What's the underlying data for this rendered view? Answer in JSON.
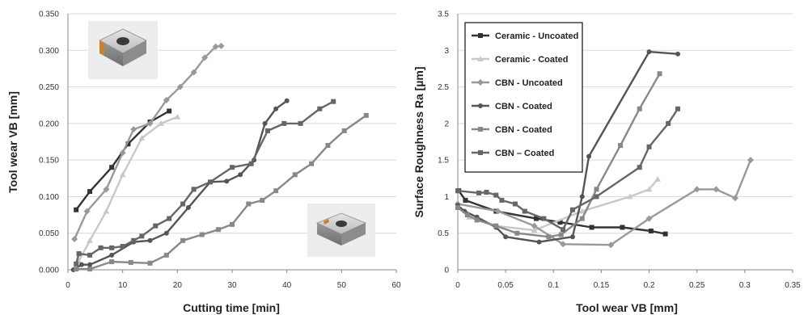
{
  "chart_data": [
    {
      "type": "line",
      "title": "",
      "xlabel": "Cutting time [min]",
      "ylabel": "Tool wear VB [mm]",
      "xlim": [
        0,
        60
      ],
      "ylim": [
        0,
        0.35
      ],
      "xticks": [
        "0",
        "10",
        "20",
        "30",
        "40",
        "50",
        "60"
      ],
      "yticks": [
        "0.000",
        "0.050",
        "0.100",
        "0.150",
        "0.200",
        "0.250",
        "0.300",
        "0.350"
      ],
      "grid": "horizontal",
      "legend": "none",
      "insets": [
        "insert-photo-top-left",
        "insert-photo-bottom-right"
      ],
      "series": [
        {
          "color": "#333333",
          "marker": "square",
          "x": [
            1.5,
            4,
            8,
            11,
            15,
            18.5
          ],
          "y": [
            0.082,
            0.107,
            0.14,
            0.172,
            0.202,
            0.217
          ]
        },
        {
          "color": "#c8c8c8",
          "marker": "triangle",
          "x": [
            2,
            4,
            7,
            10,
            13.5,
            17,
            20
          ],
          "y": [
            0.012,
            0.04,
            0.08,
            0.13,
            0.18,
            0.2,
            0.209
          ]
        },
        {
          "color": "#999999",
          "marker": "diamond",
          "x": [
            1.2,
            3.5,
            7,
            10,
            12,
            15,
            18,
            20.5,
            23,
            25,
            27,
            28
          ],
          "y": [
            0.042,
            0.08,
            0.11,
            0.16,
            0.192,
            0.2,
            0.232,
            0.25,
            0.27,
            0.29,
            0.305,
            0.306
          ]
        },
        {
          "color": "#555555",
          "marker": "circle",
          "x": [
            1,
            2.5,
            4,
            8,
            12,
            15,
            18,
            22,
            26,
            29,
            31.5,
            34,
            36,
            38,
            40
          ],
          "y": [
            0,
            0.007,
            0.007,
            0.02,
            0.038,
            0.04,
            0.05,
            0.085,
            0.12,
            0.121,
            0.13,
            0.15,
            0.2,
            0.22,
            0.231
          ]
        },
        {
          "color": "#888888",
          "marker": "square",
          "x": [
            1.5,
            4,
            8,
            11.5,
            15,
            18,
            21,
            24.5,
            27.5,
            30,
            33,
            35.5,
            38,
            41.5,
            44.5,
            47.5,
            50.5,
            54.5
          ],
          "y": [
            0.001,
            0.001,
            0.011,
            0.01,
            0.009,
            0.02,
            0.04,
            0.048,
            0.055,
            0.062,
            0.09,
            0.095,
            0.108,
            0.13,
            0.145,
            0.17,
            0.19,
            0.211
          ]
        },
        {
          "color": "#666666",
          "marker": "square",
          "x": [
            1.5,
            2,
            4,
            6,
            8,
            10,
            12,
            13.5,
            16,
            18.5,
            21,
            23,
            26,
            30,
            33.5,
            36.5,
            39.5,
            42.5,
            46,
            48.5
          ],
          "y": [
            0.008,
            0.022,
            0.02,
            0.03,
            0.03,
            0.032,
            0.04,
            0.046,
            0.06,
            0.07,
            0.09,
            0.11,
            0.12,
            0.14,
            0.145,
            0.19,
            0.2,
            0.2,
            0.22,
            0.23
          ]
        }
      ]
    },
    {
      "type": "line",
      "title": "",
      "xlabel": "Tool wear VB [mm]",
      "ylabel": "Surface Roughness Ra [µm]",
      "xlim": [
        0,
        0.35
      ],
      "ylim": [
        0,
        3.5
      ],
      "xticks": [
        "0",
        "0.05",
        "0.1",
        "0.15",
        "0.2",
        "0.25",
        "0.3",
        "0.35"
      ],
      "yticks": [
        "0",
        "0.5",
        "1",
        "1.5",
        "2",
        "2.5",
        "3",
        "3.5"
      ],
      "grid": "horizontal",
      "legend": "top-left",
      "series": [
        {
          "name": "Ceramic - Uncoated",
          "color": "#333333",
          "marker": "square",
          "x": [
            0.001,
            0.008,
            0.04,
            0.082,
            0.107,
            0.14,
            0.172,
            0.202,
            0.217
          ],
          "y": [
            1.08,
            0.95,
            0.8,
            0.7,
            0.65,
            0.58,
            0.58,
            0.53,
            0.49
          ]
        },
        {
          "name": "Ceramic - Coated",
          "color": "#c8c8c8",
          "marker": "triangle",
          "x": [
            0,
            0.012,
            0.04,
            0.08,
            0.13,
            0.18,
            0.2,
            0.209
          ],
          "y": [
            0.88,
            0.72,
            0.6,
            0.54,
            0.8,
            1.0,
            1.1,
            1.24
          ]
        },
        {
          "name": "CBN - Uncoated",
          "color": "#999999",
          "marker": "diamond",
          "x": [
            0,
            0.042,
            0.08,
            0.11,
            0.16,
            0.2,
            0.25,
            0.27,
            0.29,
            0.306
          ],
          "y": [
            0.9,
            0.8,
            0.6,
            0.35,
            0.34,
            0.7,
            1.1,
            1.1,
            0.98,
            1.5
          ]
        },
        {
          "name": "CBN - Coated",
          "color": "#555555",
          "marker": "circle",
          "x": [
            0,
            0.007,
            0.02,
            0.04,
            0.05,
            0.085,
            0.12,
            0.13,
            0.137,
            0.2,
            0.23
          ],
          "y": [
            0.88,
            0.8,
            0.72,
            0.58,
            0.45,
            0.38,
            0.45,
            1.0,
            1.55,
            2.98,
            2.95
          ]
        },
        {
          "name": "CBN - Coated",
          "color": "#888888",
          "marker": "square",
          "x": [
            0,
            0.01,
            0.02,
            0.04,
            0.062,
            0.095,
            0.108,
            0.13,
            0.145,
            0.17,
            0.19,
            0.211
          ],
          "y": [
            0.85,
            0.75,
            0.68,
            0.6,
            0.5,
            0.45,
            0.48,
            0.7,
            1.1,
            1.7,
            2.2,
            2.68
          ]
        },
        {
          "name": "CBN – Coated",
          "color": "#666666",
          "marker": "square",
          "x": [
            0,
            0.022,
            0.03,
            0.04,
            0.046,
            0.06,
            0.07,
            0.09,
            0.11,
            0.12,
            0.145,
            0.19,
            0.2,
            0.22,
            0.23
          ],
          "y": [
            1.08,
            1.05,
            1.06,
            1.02,
            0.95,
            0.9,
            0.8,
            0.7,
            0.55,
            0.82,
            1.0,
            1.4,
            1.68,
            2.0,
            2.2
          ]
        }
      ]
    }
  ]
}
